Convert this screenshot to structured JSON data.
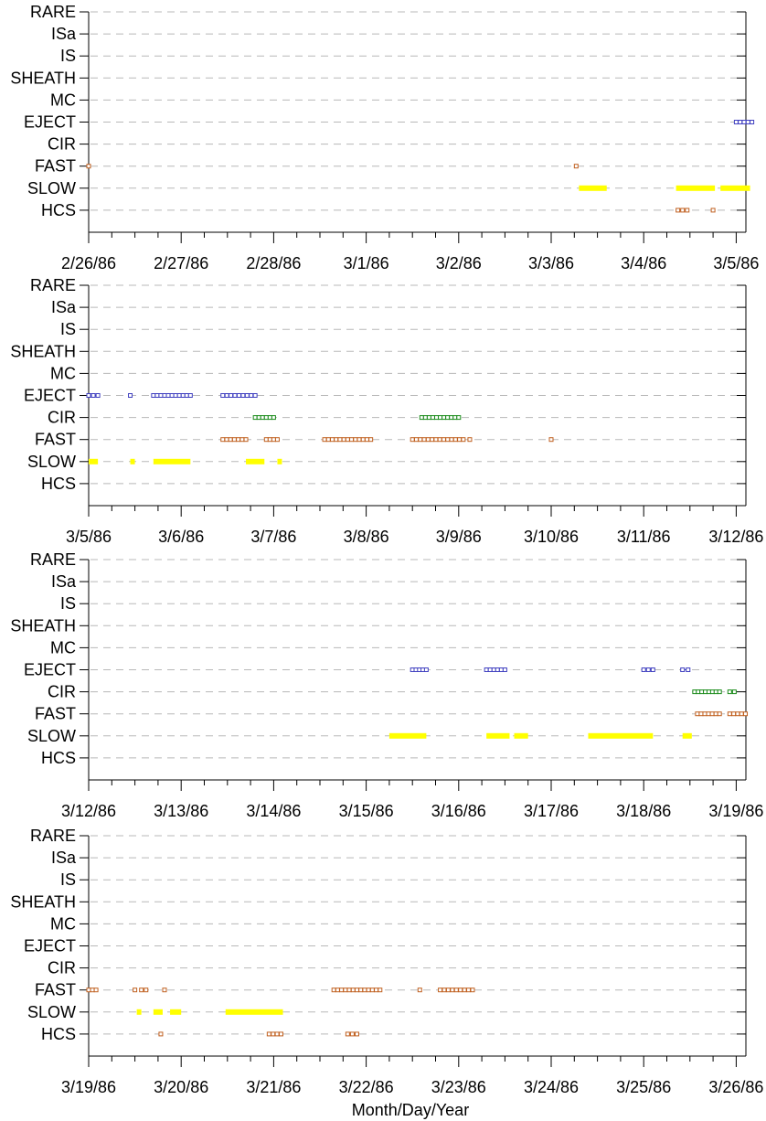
{
  "chart_data": {
    "type": "scatter",
    "xlabel": "Month/Day/Year",
    "categories": [
      "RARE",
      "ISa",
      "IS",
      "SHEATH",
      "MC",
      "EJECT",
      "CIR",
      "FAST",
      "SLOW",
      "HCS"
    ],
    "colors": {
      "EJECT": "#4040c0",
      "CIR": "#1a8a1a",
      "FAST": "#c06020",
      "SLOW": "#ffff00",
      "HCS": "#c06020"
    },
    "grid": true,
    "panels": [
      {
        "xlim": [
          "2/26/86",
          "3/5/86"
        ],
        "tick_labels": [
          "2/26/86",
          "2/27/86",
          "2/28/86",
          "3/1/86",
          "3/2/86",
          "3/3/86",
          "3/4/86",
          "3/5/86"
        ],
        "series": [
          {
            "category": "EJECT",
            "x": [
              7.0,
              7.17
            ]
          },
          {
            "category": "FAST",
            "x": [
              0.0,
              0.01
            ]
          },
          {
            "category": "FAST",
            "x": [
              5.27,
              5.28
            ]
          },
          {
            "category": "SLOW",
            "x": [
              5.3,
              5.6
            ]
          },
          {
            "category": "SLOW",
            "x": [
              6.35,
              6.77
            ]
          },
          {
            "category": "SLOW",
            "x": [
              6.83,
              7.15
            ]
          },
          {
            "category": "HCS",
            "x": [
              6.37,
              6.47
            ]
          },
          {
            "category": "HCS",
            "x": [
              6.75,
              6.76
            ]
          }
        ]
      },
      {
        "xlim": [
          "3/5/86",
          "3/12/86"
        ],
        "tick_labels": [
          "3/5/86",
          "3/6/86",
          "3/7/86",
          "3/8/86",
          "3/9/86",
          "3/10/86",
          "3/11/86",
          "3/12/86"
        ],
        "series": [
          {
            "category": "EJECT",
            "x": [
              0.0,
              0.1
            ]
          },
          {
            "category": "EJECT",
            "x": [
              0.45,
              0.46
            ]
          },
          {
            "category": "EJECT",
            "x": [
              0.7,
              1.1
            ]
          },
          {
            "category": "EJECT",
            "x": [
              1.45,
              1.8
            ]
          },
          {
            "category": "CIR",
            "x": [
              1.8,
              2.0
            ]
          },
          {
            "category": "CIR",
            "x": [
              3.6,
              4.0
            ]
          },
          {
            "category": "FAST",
            "x": [
              1.45,
              1.7
            ]
          },
          {
            "category": "FAST",
            "x": [
              1.92,
              2.04
            ]
          },
          {
            "category": "FAST",
            "x": [
              2.55,
              3.05
            ]
          },
          {
            "category": "FAST",
            "x": [
              3.5,
              4.05
            ]
          },
          {
            "category": "FAST",
            "x": [
              4.12,
              4.13
            ]
          },
          {
            "category": "FAST",
            "x": [
              5.0,
              5.01
            ]
          },
          {
            "category": "SLOW",
            "x": [
              0.0,
              0.1
            ]
          },
          {
            "category": "SLOW",
            "x": [
              0.45,
              0.47
            ]
          },
          {
            "category": "SLOW",
            "x": [
              0.7,
              1.1
            ]
          },
          {
            "category": "SLOW",
            "x": [
              1.7,
              1.9
            ]
          },
          {
            "category": "SLOW",
            "x": [
              2.04,
              2.06
            ]
          }
        ]
      },
      {
        "xlim": [
          "3/12/86",
          "3/19/86"
        ],
        "tick_labels": [
          "3/12/86",
          "3/13/86",
          "3/14/86",
          "3/15/86",
          "3/16/86",
          "3/17/86",
          "3/18/86",
          "3/19/86"
        ],
        "series": [
          {
            "category": "EJECT",
            "x": [
              3.5,
              3.65
            ]
          },
          {
            "category": "EJECT",
            "x": [
              4.3,
              4.5
            ]
          },
          {
            "category": "EJECT",
            "x": [
              6.0,
              6.1
            ]
          },
          {
            "category": "EJECT",
            "x": [
              6.42,
              6.48
            ]
          },
          {
            "category": "CIR",
            "x": [
              6.55,
              6.82
            ]
          },
          {
            "category": "CIR",
            "x": [
              6.93,
              6.98
            ]
          },
          {
            "category": "FAST",
            "x": [
              6.58,
              6.82
            ]
          },
          {
            "category": "FAST",
            "x": [
              6.93,
              7.1
            ]
          },
          {
            "category": "SLOW",
            "x": [
              3.25,
              3.65
            ]
          },
          {
            "category": "SLOW",
            "x": [
              4.3,
              4.55
            ]
          },
          {
            "category": "SLOW",
            "x": [
              4.6,
              4.75
            ]
          },
          {
            "category": "SLOW",
            "x": [
              5.4,
              6.1
            ]
          },
          {
            "category": "SLOW",
            "x": [
              6.42,
              6.52
            ]
          }
        ]
      },
      {
        "xlim": [
          "3/19/86",
          "3/26/86"
        ],
        "tick_labels": [
          "3/19/86",
          "3/20/86",
          "3/21/86",
          "3/22/86",
          "3/23/86",
          "3/24/86",
          "3/25/86",
          "3/26/86"
        ],
        "series": [
          {
            "category": "FAST",
            "x": [
              0.0,
              0.08
            ]
          },
          {
            "category": "FAST",
            "x": [
              0.5,
              0.51
            ]
          },
          {
            "category": "FAST",
            "x": [
              0.57,
              0.62
            ]
          },
          {
            "category": "FAST",
            "x": [
              0.82,
              0.83
            ]
          },
          {
            "category": "FAST",
            "x": [
              2.65,
              3.15
            ]
          },
          {
            "category": "FAST",
            "x": [
              3.58,
              3.59
            ]
          },
          {
            "category": "FAST",
            "x": [
              3.8,
              4.15
            ]
          },
          {
            "category": "SLOW",
            "x": [
              0.52,
              0.55
            ]
          },
          {
            "category": "SLOW",
            "x": [
              0.7,
              0.8
            ]
          },
          {
            "category": "SLOW",
            "x": [
              0.88,
              1.0
            ]
          },
          {
            "category": "SLOW",
            "x": [
              1.48,
              2.1
            ]
          },
          {
            "category": "HCS",
            "x": [
              0.78,
              0.79
            ]
          },
          {
            "category": "HCS",
            "x": [
              1.95,
              2.08
            ]
          },
          {
            "category": "HCS",
            "x": [
              2.8,
              2.9
            ]
          }
        ]
      }
    ]
  }
}
